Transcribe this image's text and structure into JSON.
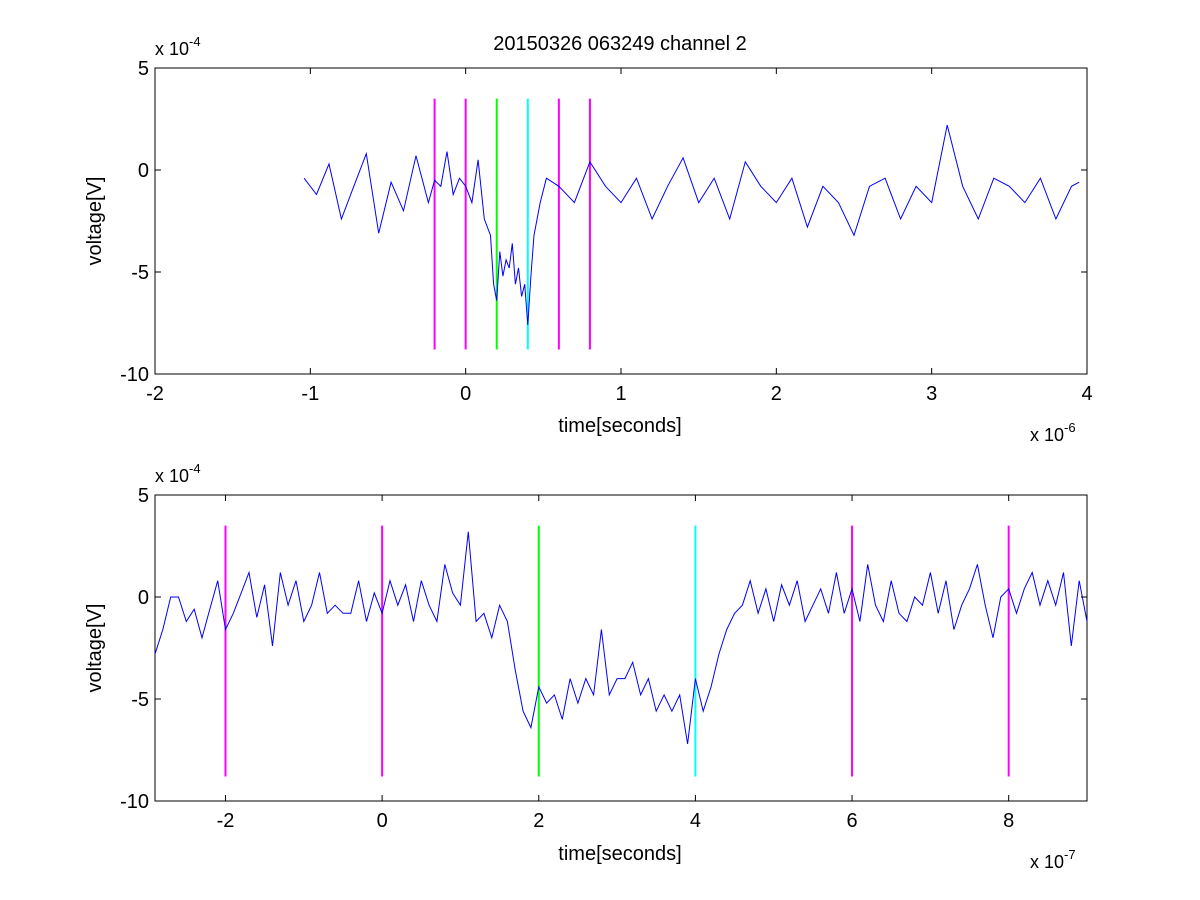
{
  "figure": {
    "title": "20150326 063249 channel 2"
  },
  "chart_data": [
    {
      "type": "line",
      "xlabel": "time[seconds]",
      "ylabel": "voltage[V]",
      "x_multiplier": "x 10",
      "x_exponent": "-6",
      "y_multiplier": "x 10",
      "y_exponent": "-4",
      "xlim": [
        -2,
        4
      ],
      "ylim": [
        -10,
        5
      ],
      "xticks": [
        -2,
        -1,
        0,
        1,
        2,
        3,
        4
      ],
      "xtick_labels": [
        "-2",
        "-1",
        "0",
        "1",
        "2",
        "3",
        "4"
      ],
      "yticks": [
        5,
        0,
        -5,
        -10
      ],
      "ytick_labels": [
        "5",
        "0",
        "-5",
        "-10"
      ],
      "series": [
        {
          "color": "#0000ff",
          "x": [
            -1.04,
            -0.96,
            -0.88,
            -0.8,
            -0.72,
            -0.64,
            -0.56,
            -0.48,
            -0.4,
            -0.32,
            -0.24,
            -0.2,
            -0.16,
            -0.12,
            -0.08,
            -0.04,
            0.0,
            0.04,
            0.08,
            0.12,
            0.16,
            0.18,
            0.2,
            0.22,
            0.24,
            0.26,
            0.28,
            0.3,
            0.32,
            0.34,
            0.36,
            0.38,
            0.4,
            0.42,
            0.44,
            0.48,
            0.52,
            0.6,
            0.7,
            0.8,
            0.9,
            1.0,
            1.1,
            1.2,
            1.3,
            1.4,
            1.5,
            1.6,
            1.7,
            1.8,
            1.9,
            2.0,
            2.1,
            2.2,
            2.3,
            2.4,
            2.5,
            2.6,
            2.7,
            2.8,
            2.9,
            3.0,
            3.1,
            3.2,
            3.3,
            3.4,
            3.5,
            3.6,
            3.7,
            3.8,
            3.9,
            3.95
          ],
          "y": [
            -0.4,
            -1.2,
            0.3,
            -2.4,
            -0.8,
            0.8,
            -3.1,
            -0.6,
            -2.0,
            0.7,
            -1.6,
            -0.5,
            -0.8,
            0.9,
            -1.2,
            -0.4,
            -0.8,
            -1.6,
            0.5,
            -2.4,
            -3.2,
            -5.6,
            -6.4,
            -4.0,
            -5.2,
            -4.4,
            -4.8,
            -3.6,
            -5.6,
            -4.8,
            -6.2,
            -5.6,
            -7.6,
            -5.2,
            -3.2,
            -1.6,
            -0.4,
            -0.8,
            -1.6,
            0.4,
            -0.8,
            -1.6,
            -0.4,
            -2.4,
            -0.8,
            0.6,
            -1.6,
            -0.4,
            -2.4,
            0.4,
            -0.8,
            -1.6,
            -0.4,
            -2.8,
            -0.8,
            -1.6,
            -3.2,
            -0.8,
            -0.4,
            -2.4,
            -0.8,
            -1.6,
            2.2,
            -0.8,
            -2.4,
            -0.4,
            -0.8,
            -1.6,
            -0.4,
            -2.4,
            -0.8,
            -0.6
          ]
        }
      ],
      "vlines": [
        {
          "x": -0.2,
          "color": "#ff00ff"
        },
        {
          "x": 0.0,
          "color": "#ff00ff"
        },
        {
          "x": 0.2,
          "color": "#00ff00"
        },
        {
          "x": 0.4,
          "color": "#00ffff"
        },
        {
          "x": 0.6,
          "color": "#ff00ff"
        },
        {
          "x": 0.8,
          "color": "#ff00ff"
        }
      ],
      "vline_range": [
        -8.8,
        3.5
      ]
    },
    {
      "type": "line",
      "xlabel": "time[seconds]",
      "ylabel": "voltage[V]",
      "x_multiplier": "x 10",
      "x_exponent": "-7",
      "y_multiplier": "x 10",
      "y_exponent": "-4",
      "xlim": [
        -2.9,
        9
      ],
      "ylim": [
        -10,
        5
      ],
      "xticks": [
        -2,
        0,
        2,
        4,
        6,
        8
      ],
      "xtick_labels": [
        "-2",
        "0",
        "2",
        "4",
        "6",
        "8"
      ],
      "yticks": [
        5,
        0,
        -5,
        -10
      ],
      "ytick_labels": [
        "5",
        "0",
        "-5",
        "-10"
      ],
      "series": [
        {
          "color": "#0000ff",
          "x": [
            -2.9,
            -2.8,
            -2.7,
            -2.6,
            -2.5,
            -2.4,
            -2.3,
            -2.2,
            -2.1,
            -2.0,
            -1.9,
            -1.8,
            -1.7,
            -1.6,
            -1.5,
            -1.4,
            -1.3,
            -1.2,
            -1.1,
            -1.0,
            -0.9,
            -0.8,
            -0.7,
            -0.6,
            -0.5,
            -0.4,
            -0.3,
            -0.2,
            -0.1,
            0.0,
            0.1,
            0.2,
            0.3,
            0.4,
            0.5,
            0.6,
            0.7,
            0.8,
            0.9,
            1.0,
            1.1,
            1.2,
            1.3,
            1.4,
            1.5,
            1.6,
            1.7,
            1.8,
            1.9,
            2.0,
            2.1,
            2.2,
            2.3,
            2.4,
            2.5,
            2.6,
            2.7,
            2.8,
            2.9,
            3.0,
            3.1,
            3.2,
            3.3,
            3.4,
            3.5,
            3.6,
            3.7,
            3.8,
            3.9,
            4.0,
            4.1,
            4.2,
            4.3,
            4.4,
            4.5,
            4.6,
            4.7,
            4.8,
            4.9,
            5.0,
            5.1,
            5.2,
            5.3,
            5.4,
            5.5,
            5.6,
            5.7,
            5.8,
            5.9,
            6.0,
            6.1,
            6.2,
            6.3,
            6.4,
            6.5,
            6.6,
            6.7,
            6.8,
            6.9,
            7.0,
            7.1,
            7.2,
            7.3,
            7.4,
            7.5,
            7.6,
            7.7,
            7.8,
            7.9,
            8.0,
            8.1,
            8.2,
            8.3,
            8.4,
            8.5,
            8.6,
            8.7,
            8.8,
            8.9,
            9.0
          ],
          "y": [
            -2.8,
            -1.6,
            0.0,
            0.0,
            -1.2,
            -0.6,
            -2.0,
            -0.6,
            0.8,
            -1.6,
            -0.8,
            0.2,
            1.2,
            -1.0,
            0.6,
            -2.4,
            1.2,
            -0.4,
            0.8,
            -1.2,
            -0.4,
            1.2,
            -0.8,
            -0.4,
            -0.8,
            -0.8,
            0.8,
            -1.2,
            0.2,
            -0.8,
            0.8,
            -0.4,
            0.6,
            -1.2,
            0.8,
            -0.4,
            -1.2,
            1.6,
            0.2,
            -0.4,
            3.2,
            -1.2,
            -0.8,
            -2.0,
            -0.4,
            -1.2,
            -3.6,
            -5.6,
            -6.4,
            -4.4,
            -5.2,
            -4.8,
            -6.0,
            -4.0,
            -5.2,
            -4.0,
            -4.8,
            -1.6,
            -4.8,
            -4.0,
            -4.0,
            -3.2,
            -4.8,
            -4.0,
            -5.6,
            -4.8,
            -5.6,
            -4.8,
            -7.2,
            -4.0,
            -5.6,
            -4.4,
            -2.8,
            -1.6,
            -0.8,
            -0.4,
            0.8,
            -0.8,
            0.4,
            -1.2,
            0.6,
            -0.4,
            0.8,
            -1.2,
            -0.4,
            0.4,
            -0.8,
            1.2,
            -0.8,
            0.4,
            -1.2,
            1.6,
            -0.4,
            -1.2,
            0.8,
            -0.8,
            -1.2,
            0.0,
            -0.4,
            1.2,
            -0.8,
            0.8,
            -1.6,
            -0.4,
            0.4,
            1.6,
            -0.4,
            -2.0,
            0.0,
            0.4,
            -0.8,
            0.4,
            1.2,
            -0.4,
            0.8,
            -0.4,
            1.2,
            -2.4,
            0.8,
            -1.2
          ]
        }
      ],
      "vlines": [
        {
          "x": -2,
          "color": "#ff00ff"
        },
        {
          "x": 0,
          "color": "#ff00ff"
        },
        {
          "x": 2,
          "color": "#00ff00"
        },
        {
          "x": 4,
          "color": "#00ffff"
        },
        {
          "x": 6,
          "color": "#ff00ff"
        },
        {
          "x": 8,
          "color": "#ff00ff"
        }
      ],
      "vline_range": [
        -8.8,
        3.5
      ]
    }
  ]
}
